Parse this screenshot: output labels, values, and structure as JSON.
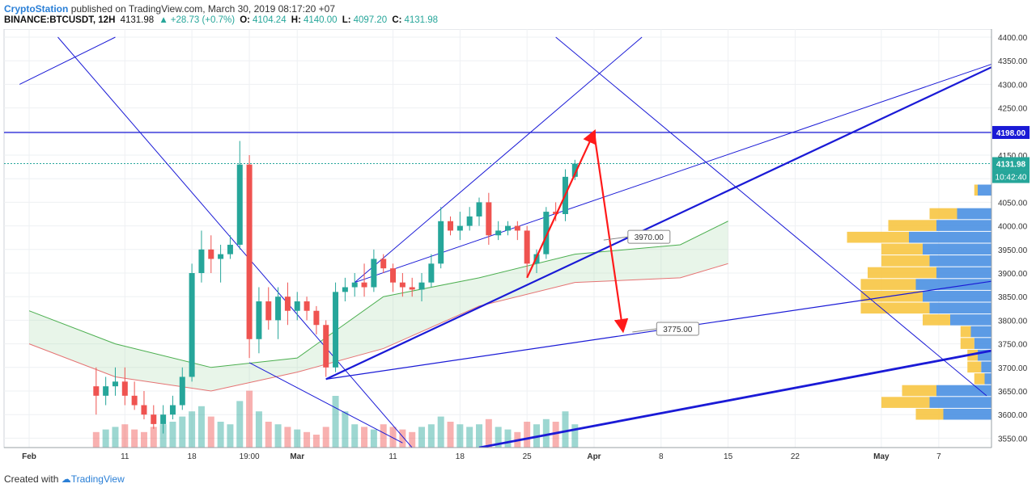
{
  "header": {
    "publisher": "CryptoStation",
    "published_text": "published on TradingView.com, March 30, 2019 08:17:20 +07",
    "symbol": "BINANCE:BTCUSDT, 12H",
    "last": "4131.98",
    "change": "+28.73 (+0.7%)",
    "o_label": "O:",
    "o_value": "4104.24",
    "h_label": "H:",
    "h_value": "4140.00",
    "l_label": "L:",
    "l_value": "4097.20",
    "c_label": "C:",
    "c_value": "4131.98"
  },
  "footer": {
    "created_with": "Created with",
    "logo_text": "TradingView"
  },
  "colors": {
    "up": "#26a69a",
    "down": "#ef5350",
    "trend": "#1a1ad6",
    "arrow": "#ff1a1a",
    "volume_profile_up": "#4a90e2",
    "volume_profile_down": "#f7c543"
  },
  "chart_data": {
    "type": "candlestick",
    "y_axis_ticks": [
      3550,
      3600,
      3650,
      3700,
      3750,
      3800,
      3850,
      3900,
      3950,
      4000,
      4050,
      4100,
      4150,
      4200,
      4250,
      4300,
      4350,
      4400
    ],
    "ylim": [
      3530,
      4410
    ],
    "x_axis_labels": [
      {
        "label": "Feb",
        "date": "2019-02-01"
      },
      {
        "label": "11",
        "date": "2019-02-11"
      },
      {
        "label": "18",
        "date": "2019-02-18"
      },
      {
        "label": "19:00",
        "date": "2019-02-24"
      },
      {
        "label": "Mar",
        "date": "2019-03-01"
      },
      {
        "label": "11",
        "date": "2019-03-11"
      },
      {
        "label": "18",
        "date": "2019-03-18"
      },
      {
        "label": "25",
        "date": "2019-03-25"
      },
      {
        "label": "Apr",
        "date": "2019-04-01"
      },
      {
        "label": "8",
        "date": "2019-04-08"
      },
      {
        "label": "15",
        "date": "2019-04-15"
      },
      {
        "label": "22",
        "date": "2019-04-22"
      },
      {
        "label": "May",
        "date": "2019-05-01"
      },
      {
        "label": "7",
        "date": "2019-05-07"
      }
    ],
    "price_labels": {
      "resistance": "4198.00",
      "last": "4131.98",
      "countdown": "10:42:40"
    },
    "resistance": 4198,
    "annotations": [
      {
        "text": "3970.00",
        "date": "2019-04-02",
        "price": 3970
      },
      {
        "text": "3775.00",
        "date": "2019-04-05",
        "price": 3775
      }
    ],
    "candles": [
      {
        "date": "2019-02-08",
        "o": 3660,
        "h": 3700,
        "l": 3600,
        "c": 3640
      },
      {
        "date": "2019-02-09",
        "o": 3640,
        "h": 3680,
        "l": 3620,
        "c": 3660
      },
      {
        "date": "2019-02-10",
        "o": 3660,
        "h": 3700,
        "l": 3640,
        "c": 3670
      },
      {
        "date": "2019-02-11",
        "o": 3670,
        "h": 3700,
        "l": 3620,
        "c": 3640
      },
      {
        "date": "2019-02-12",
        "o": 3640,
        "h": 3670,
        "l": 3610,
        "c": 3620
      },
      {
        "date": "2019-02-13",
        "o": 3620,
        "h": 3650,
        "l": 3590,
        "c": 3600
      },
      {
        "date": "2019-02-14",
        "o": 3600,
        "h": 3620,
        "l": 3570,
        "c": 3580
      },
      {
        "date": "2019-02-15",
        "o": 3580,
        "h": 3620,
        "l": 3560,
        "c": 3600
      },
      {
        "date": "2019-02-16",
        "o": 3600,
        "h": 3640,
        "l": 3590,
        "c": 3620
      },
      {
        "date": "2019-02-17",
        "o": 3620,
        "h": 3700,
        "l": 3610,
        "c": 3680
      },
      {
        "date": "2019-02-18",
        "o": 3680,
        "h": 3920,
        "l": 3670,
        "c": 3900
      },
      {
        "date": "2019-02-19",
        "o": 3900,
        "h": 3990,
        "l": 3880,
        "c": 3950
      },
      {
        "date": "2019-02-20",
        "o": 3950,
        "h": 3980,
        "l": 3900,
        "c": 3930
      },
      {
        "date": "2019-02-21",
        "o": 3930,
        "h": 3960,
        "l": 3880,
        "c": 3940
      },
      {
        "date": "2019-02-22",
        "o": 3940,
        "h": 3980,
        "l": 3930,
        "c": 3960
      },
      {
        "date": "2019-02-23",
        "o": 3960,
        "h": 4180,
        "l": 3950,
        "c": 4130
      },
      {
        "date": "2019-02-24",
        "o": 4130,
        "h": 4150,
        "l": 3720,
        "c": 3760
      },
      {
        "date": "2019-02-25",
        "o": 3760,
        "h": 3870,
        "l": 3730,
        "c": 3840
      },
      {
        "date": "2019-02-26",
        "o": 3840,
        "h": 3870,
        "l": 3780,
        "c": 3800
      },
      {
        "date": "2019-02-27",
        "o": 3800,
        "h": 3870,
        "l": 3760,
        "c": 3850
      },
      {
        "date": "2019-02-28",
        "o": 3850,
        "h": 3880,
        "l": 3790,
        "c": 3820
      },
      {
        "date": "2019-03-01",
        "o": 3820,
        "h": 3860,
        "l": 3800,
        "c": 3840
      },
      {
        "date": "2019-03-02",
        "o": 3840,
        "h": 3850,
        "l": 3800,
        "c": 3820
      },
      {
        "date": "2019-03-03",
        "o": 3820,
        "h": 3830,
        "l": 3770,
        "c": 3790
      },
      {
        "date": "2019-03-04",
        "o": 3790,
        "h": 3800,
        "l": 3680,
        "c": 3700
      },
      {
        "date": "2019-03-05",
        "o": 3700,
        "h": 3880,
        "l": 3690,
        "c": 3860
      },
      {
        "date": "2019-03-06",
        "o": 3860,
        "h": 3890,
        "l": 3840,
        "c": 3870
      },
      {
        "date": "2019-03-07",
        "o": 3870,
        "h": 3900,
        "l": 3850,
        "c": 3880
      },
      {
        "date": "2019-03-08",
        "o": 3880,
        "h": 3920,
        "l": 3850,
        "c": 3870
      },
      {
        "date": "2019-03-09",
        "o": 3870,
        "h": 3950,
        "l": 3860,
        "c": 3930
      },
      {
        "date": "2019-03-10",
        "o": 3930,
        "h": 3940,
        "l": 3900,
        "c": 3910
      },
      {
        "date": "2019-03-11",
        "o": 3910,
        "h": 3920,
        "l": 3860,
        "c": 3880
      },
      {
        "date": "2019-03-12",
        "o": 3880,
        "h": 3900,
        "l": 3850,
        "c": 3870
      },
      {
        "date": "2019-03-13",
        "o": 3870,
        "h": 3890,
        "l": 3850,
        "c": 3865
      },
      {
        "date": "2019-03-14",
        "o": 3865,
        "h": 3900,
        "l": 3840,
        "c": 3880
      },
      {
        "date": "2019-03-15",
        "o": 3880,
        "h": 3940,
        "l": 3870,
        "c": 3920
      },
      {
        "date": "2019-03-16",
        "o": 3920,
        "h": 4040,
        "l": 3910,
        "c": 4010
      },
      {
        "date": "2019-03-17",
        "o": 4010,
        "h": 4020,
        "l": 3980,
        "c": 3990
      },
      {
        "date": "2019-03-18",
        "o": 3990,
        "h": 4030,
        "l": 3970,
        "c": 4000
      },
      {
        "date": "2019-03-19",
        "o": 4000,
        "h": 4040,
        "l": 3990,
        "c": 4020
      },
      {
        "date": "2019-03-20",
        "o": 4020,
        "h": 4060,
        "l": 4000,
        "c": 4050
      },
      {
        "date": "2019-03-21",
        "o": 4050,
        "h": 4070,
        "l": 3960,
        "c": 3980
      },
      {
        "date": "2019-03-22",
        "o": 3980,
        "h": 4010,
        "l": 3970,
        "c": 3990
      },
      {
        "date": "2019-03-23",
        "o": 3990,
        "h": 4010,
        "l": 3980,
        "c": 4000
      },
      {
        "date": "2019-03-24",
        "o": 4000,
        "h": 4010,
        "l": 3970,
        "c": 3990
      },
      {
        "date": "2019-03-25",
        "o": 3990,
        "h": 4000,
        "l": 3890,
        "c": 3920
      },
      {
        "date": "2019-03-26",
        "o": 3920,
        "h": 3950,
        "l": 3900,
        "c": 3940
      },
      {
        "date": "2019-03-27",
        "o": 3940,
        "h": 4040,
        "l": 3930,
        "c": 4030
      },
      {
        "date": "2019-03-28",
        "o": 4030,
        "h": 4050,
        "l": 4010,
        "c": 4025
      },
      {
        "date": "2019-03-29",
        "o": 4025,
        "h": 4120,
        "l": 4010,
        "c": 4104
      },
      {
        "date": "2019-03-30",
        "o": 4104,
        "h": 4140,
        "l": 4097,
        "c": 4132
      }
    ],
    "volume_profile": [
      {
        "price": 4075,
        "up": 20,
        "down": 5
      },
      {
        "price": 4025,
        "up": 50,
        "down": 40
      },
      {
        "price": 4000,
        "up": 80,
        "down": 70
      },
      {
        "price": 3975,
        "up": 120,
        "down": 90
      },
      {
        "price": 3950,
        "up": 100,
        "down": 60
      },
      {
        "price": 3925,
        "up": 90,
        "down": 70
      },
      {
        "price": 3900,
        "up": 80,
        "down": 100
      },
      {
        "price": 3875,
        "up": 110,
        "down": 80
      },
      {
        "price": 3850,
        "up": 100,
        "down": 90
      },
      {
        "price": 3825,
        "up": 90,
        "down": 100
      },
      {
        "price": 3800,
        "up": 60,
        "down": 40
      },
      {
        "price": 3775,
        "up": 30,
        "down": 15
      },
      {
        "price": 3750,
        "up": 25,
        "down": 20
      },
      {
        "price": 3725,
        "up": 20,
        "down": 15
      },
      {
        "price": 3700,
        "up": 15,
        "down": 20
      },
      {
        "price": 3675,
        "up": 10,
        "down": 15
      },
      {
        "price": 3650,
        "up": 80,
        "down": 50
      },
      {
        "price": 3625,
        "up": 90,
        "down": 70
      },
      {
        "price": 3600,
        "up": 70,
        "down": 40
      }
    ],
    "volume": [
      6,
      7,
      8,
      9,
      7,
      6,
      8,
      9,
      10,
      12,
      14,
      16,
      12,
      10,
      9,
      18,
      22,
      14,
      10,
      9,
      8,
      7,
      6,
      5,
      8,
      20,
      14,
      9,
      8,
      7,
      9,
      8,
      7,
      6,
      8,
      9,
      12,
      10,
      9,
      8,
      9,
      11,
      8,
      7,
      6,
      10,
      9,
      11,
      10,
      14,
      9
    ],
    "ichimoku_cloud": [
      {
        "date": "2019-02-01",
        "a": 3820,
        "b": 3750
      },
      {
        "date": "2019-02-10",
        "a": 3750,
        "b": 3680
      },
      {
        "date": "2019-02-20",
        "a": 3700,
        "b": 3650
      },
      {
        "date": "2019-03-01",
        "a": 3720,
        "b": 3690
      },
      {
        "date": "2019-03-10",
        "a": 3850,
        "b": 3740
      },
      {
        "date": "2019-03-20",
        "a": 3890,
        "b": 3830
      },
      {
        "date": "2019-03-30",
        "a": 3940,
        "b": 3880
      },
      {
        "date": "2019-04-10",
        "a": 3960,
        "b": 3890
      },
      {
        "date": "2019-04-15",
        "a": 4010,
        "b": 3920
      }
    ]
  }
}
